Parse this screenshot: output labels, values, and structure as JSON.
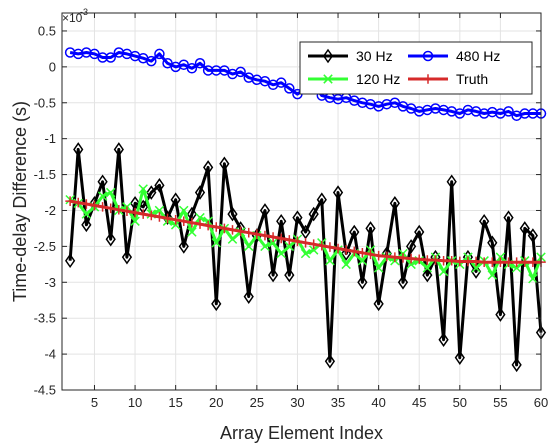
{
  "chart_data": {
    "type": "line",
    "xlabel": "Array Element Index",
    "ylabel": "Time-delay Difference (s)",
    "y_multiplier_label": "×10",
    "y_multiplier_exponent": "-3",
    "xlim": [
      1,
      60
    ],
    "ylim": [
      -4.5,
      0.75
    ],
    "x_ticks": [
      5,
      10,
      15,
      20,
      25,
      30,
      35,
      40,
      45,
      50,
      55,
      60
    ],
    "y_ticks": [
      -4.5,
      -4,
      -3.5,
      -3,
      -2.5,
      -2,
      -1.5,
      -1,
      -0.5,
      0,
      0.5
    ],
    "y_tick_labels": [
      "-4.5",
      "-4",
      "-3.5",
      "-3",
      "-2.5",
      "-2",
      "-1.5",
      "-1",
      "-0.5",
      "0",
      "0.5"
    ],
    "grid": true,
    "legend_position": "top-right",
    "series": [
      {
        "name": "30 Hz",
        "color": "#000000",
        "marker": "diamond",
        "x": [
          2,
          3,
          4,
          5,
          6,
          7,
          8,
          9,
          10,
          11,
          12,
          13,
          14,
          15,
          16,
          17,
          18,
          19,
          20,
          21,
          22,
          23,
          24,
          25,
          26,
          27,
          28,
          29,
          30,
          31,
          32,
          33,
          34,
          35,
          36,
          37,
          38,
          39,
          40,
          41,
          42,
          43,
          44,
          45,
          46,
          47,
          48,
          49,
          50,
          51,
          52,
          53,
          54,
          55,
          56,
          57,
          58,
          59,
          60
        ],
        "values": [
          -2.7,
          -1.15,
          -2.2,
          -1.9,
          -1.6,
          -2.4,
          -1.15,
          -2.65,
          -1.9,
          -1.95,
          -1.75,
          -1.65,
          -2.1,
          -1.85,
          -2.5,
          -2.05,
          -1.75,
          -1.4,
          -3.3,
          -1.35,
          -2.05,
          -2.25,
          -3.2,
          -2.35,
          -2.0,
          -2.9,
          -2.15,
          -2.9,
          -2.1,
          -2.3,
          -2.05,
          -1.85,
          -4.1,
          -1.75,
          -2.6,
          -2.3,
          -3.0,
          -2.25,
          -3.3,
          -2.6,
          -1.9,
          -3.0,
          -2.5,
          -2.3,
          -2.9,
          -2.65,
          -3.8,
          -1.6,
          -4.05,
          -2.65,
          -2.85,
          -2.15,
          -2.45,
          -3.45,
          -2.1,
          -4.15,
          -2.25,
          -2.35,
          -3.7
        ]
      },
      {
        "name": "480 Hz",
        "color": "#0000ff",
        "marker": "circle",
        "x": [
          2,
          3,
          4,
          5,
          6,
          7,
          8,
          9,
          10,
          11,
          12,
          13,
          14,
          15,
          16,
          17,
          18,
          19,
          20,
          21,
          22,
          23,
          24,
          25,
          26,
          27,
          28,
          29,
          30,
          31,
          32,
          33,
          34,
          35,
          36,
          37,
          38,
          39,
          40,
          41,
          42,
          43,
          44,
          45,
          46,
          47,
          48,
          49,
          50,
          51,
          52,
          53,
          54,
          55,
          56,
          57,
          58,
          59,
          60
        ],
        "values": [
          0.2,
          0.18,
          0.2,
          0.18,
          0.13,
          0.13,
          0.2,
          0.18,
          0.15,
          0.12,
          0.08,
          0.18,
          0.05,
          0.0,
          0.03,
          -0.02,
          0.05,
          -0.05,
          -0.05,
          -0.05,
          -0.1,
          -0.07,
          -0.15,
          -0.18,
          -0.2,
          -0.25,
          -0.22,
          -0.3,
          -0.38,
          -0.3,
          -0.25,
          -0.4,
          -0.43,
          -0.45,
          -0.43,
          -0.47,
          -0.5,
          -0.52,
          -0.55,
          -0.52,
          -0.5,
          -0.55,
          -0.58,
          -0.62,
          -0.6,
          -0.58,
          -0.6,
          -0.62,
          -0.65,
          -0.6,
          -0.62,
          -0.65,
          -0.63,
          -0.65,
          -0.62,
          -0.68,
          -0.65,
          -0.65,
          -0.65
        ]
      },
      {
        "name": "120 Hz",
        "color": "#33ff33",
        "marker": "x",
        "x": [
          2,
          3,
          4,
          5,
          6,
          7,
          8,
          9,
          10,
          11,
          12,
          13,
          14,
          15,
          16,
          17,
          18,
          19,
          20,
          21,
          22,
          23,
          24,
          25,
          26,
          27,
          28,
          29,
          30,
          31,
          32,
          33,
          34,
          35,
          36,
          37,
          38,
          39,
          40,
          41,
          42,
          43,
          44,
          45,
          46,
          47,
          48,
          49,
          50,
          51,
          52,
          53,
          54,
          55,
          56,
          57,
          58,
          59,
          60
        ],
        "values": [
          -1.85,
          -1.9,
          -2.05,
          -1.95,
          -1.8,
          -1.75,
          -2.0,
          -1.95,
          -2.15,
          -1.7,
          -2.05,
          -2.0,
          -2.15,
          -2.2,
          -2.0,
          -2.3,
          -2.1,
          -2.15,
          -2.45,
          -2.25,
          -2.4,
          -2.3,
          -2.5,
          -2.35,
          -2.5,
          -2.45,
          -2.6,
          -2.5,
          -2.4,
          -2.6,
          -2.55,
          -2.45,
          -2.7,
          -2.55,
          -2.75,
          -2.6,
          -2.7,
          -2.55,
          -2.8,
          -2.65,
          -2.7,
          -2.6,
          -2.75,
          -2.7,
          -2.8,
          -2.65,
          -2.85,
          -2.7,
          -2.75,
          -2.65,
          -2.8,
          -2.7,
          -2.9,
          -2.65,
          -2.75,
          -2.8,
          -2.7,
          -2.95,
          -2.65
        ]
      },
      {
        "name": "Truth",
        "color": "#d62a2a",
        "marker": "plus",
        "x": [
          2,
          3,
          4,
          5,
          6,
          7,
          8,
          9,
          10,
          11,
          12,
          13,
          14,
          15,
          16,
          17,
          18,
          19,
          20,
          21,
          22,
          23,
          24,
          25,
          26,
          27,
          28,
          29,
          30,
          31,
          32,
          33,
          34,
          35,
          36,
          37,
          38,
          39,
          40,
          41,
          42,
          43,
          44,
          45,
          46,
          47,
          48,
          49,
          50,
          51,
          52,
          53,
          54,
          55,
          56,
          57,
          58,
          59,
          60
        ],
        "values": [
          -1.87,
          -1.89,
          -1.91,
          -1.93,
          -1.95,
          -1.97,
          -1.99,
          -2.01,
          -2.03,
          -2.05,
          -2.07,
          -2.09,
          -2.11,
          -2.13,
          -2.15,
          -2.17,
          -2.19,
          -2.21,
          -2.23,
          -2.25,
          -2.27,
          -2.29,
          -2.31,
          -2.33,
          -2.35,
          -2.37,
          -2.39,
          -2.41,
          -2.43,
          -2.45,
          -2.47,
          -2.49,
          -2.51,
          -2.53,
          -2.55,
          -2.57,
          -2.59,
          -2.61,
          -2.63,
          -2.64,
          -2.65,
          -2.66,
          -2.67,
          -2.68,
          -2.69,
          -2.69,
          -2.7,
          -2.7,
          -2.71,
          -2.71,
          -2.71,
          -2.72,
          -2.72,
          -2.72,
          -2.72,
          -2.72,
          -2.72,
          -2.72,
          -2.72
        ]
      }
    ],
    "legend_order": [
      "30 Hz",
      "480 Hz",
      "120 Hz",
      "Truth"
    ]
  }
}
